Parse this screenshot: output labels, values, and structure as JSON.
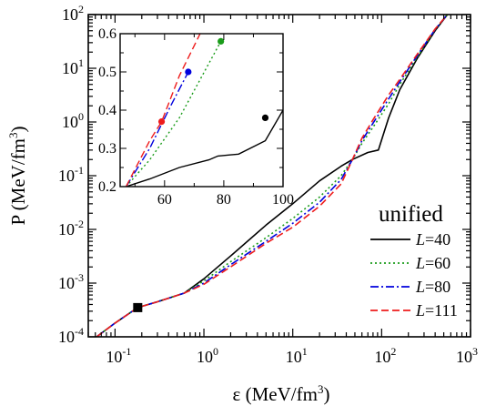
{
  "chart_data": [
    {
      "type": "line",
      "xscale": "log",
      "yscale": "log",
      "xlim": [
        0.05,
        1000
      ],
      "ylim": [
        0.0001,
        100
      ],
      "xlabel_base": "ε (MeV/fm",
      "xlabel_sup": "3",
      "xlabel_end": ")",
      "ylabel_base": "P (MeV/fm",
      "ylabel_sup": "3",
      "ylabel_end": ")",
      "x_ticks": [
        {
          "value": 0.1,
          "base": "10",
          "exp": "-1"
        },
        {
          "value": 1,
          "base": "10",
          "exp": "0"
        },
        {
          "value": 10,
          "base": "10",
          "exp": "1"
        },
        {
          "value": 100,
          "base": "10",
          "exp": "2"
        },
        {
          "value": 1000,
          "base": "10",
          "exp": "3"
        }
      ],
      "y_ticks": [
        {
          "value": 0.0001,
          "base": "10",
          "exp": "-4"
        },
        {
          "value": 0.001,
          "base": "10",
          "exp": "-3"
        },
        {
          "value": 0.01,
          "base": "10",
          "exp": "-2"
        },
        {
          "value": 0.1,
          "base": "10",
          "exp": "-1"
        },
        {
          "value": 1,
          "base": "10",
          "exp": "0"
        },
        {
          "value": 10,
          "base": "10",
          "exp": "1"
        },
        {
          "value": 100,
          "base": "10",
          "exp": "2"
        }
      ],
      "legend_title": "unified",
      "legend_position": "right",
      "series": [
        {
          "name_italic": "L",
          "name_rest": "=40",
          "color": "#000000",
          "dash": "solid",
          "points": [
            [
              0.062,
              0.0001
            ],
            [
              0.1,
              0.00018
            ],
            [
              0.18,
              0.00035
            ],
            [
              0.3,
              0.00045
            ],
            [
              0.6,
              0.00065
            ],
            [
              1,
              0.0012
            ],
            [
              2,
              0.0032
            ],
            [
              5,
              0.012
            ],
            [
              10,
              0.03
            ],
            [
              20,
              0.08
            ],
            [
              35,
              0.15
            ],
            [
              47,
              0.2
            ],
            [
              70,
              0.27
            ],
            [
              92,
              0.3
            ],
            [
              120,
              1.2
            ],
            [
              160,
              4
            ],
            [
              250,
              15
            ],
            [
              400,
              50
            ],
            [
              550,
              100
            ]
          ]
        },
        {
          "name_italic": "L",
          "name_rest": "=60",
          "color": "#1a9c1a",
          "dash": "dotted",
          "points": [
            [
              0.062,
              0.0001
            ],
            [
              0.1,
              0.00018
            ],
            [
              0.18,
              0.00035
            ],
            [
              0.3,
              0.00045
            ],
            [
              0.6,
              0.00065
            ],
            [
              1,
              0.0011
            ],
            [
              2,
              0.0025
            ],
            [
              5,
              0.007
            ],
            [
              10,
              0.016
            ],
            [
              20,
              0.04
            ],
            [
              35,
              0.1
            ],
            [
              47,
              0.2
            ],
            [
              60,
              0.4
            ],
            [
              80,
              0.8
            ],
            [
              120,
              2.2
            ],
            [
              160,
              5
            ],
            [
              250,
              16
            ],
            [
              400,
              52
            ],
            [
              550,
              100
            ]
          ]
        },
        {
          "name_italic": "L",
          "name_rest": "=80",
          "color": "#0000dd",
          "dash": "dashdot",
          "points": [
            [
              0.062,
              0.0001
            ],
            [
              0.1,
              0.00018
            ],
            [
              0.18,
              0.00035
            ],
            [
              0.3,
              0.00045
            ],
            [
              0.6,
              0.00065
            ],
            [
              1,
              0.001
            ],
            [
              2,
              0.0022
            ],
            [
              5,
              0.006
            ],
            [
              10,
              0.013
            ],
            [
              20,
              0.032
            ],
            [
              35,
              0.085
            ],
            [
              47,
              0.2
            ],
            [
              60,
              0.45
            ],
            [
              80,
              0.95
            ],
            [
              120,
              2.7
            ],
            [
              160,
              5.6
            ],
            [
              250,
              17
            ],
            [
              400,
              53
            ],
            [
              550,
              100
            ]
          ]
        },
        {
          "name_italic": "L",
          "name_rest": "=111",
          "color": "#ee1c1c",
          "dash": "dashed",
          "points": [
            [
              0.062,
              0.0001
            ],
            [
              0.1,
              0.00018
            ],
            [
              0.18,
              0.00035
            ],
            [
              0.3,
              0.00045
            ],
            [
              0.6,
              0.00065
            ],
            [
              1,
              0.00095
            ],
            [
              2,
              0.002
            ],
            [
              5,
              0.0055
            ],
            [
              10,
              0.011
            ],
            [
              20,
              0.027
            ],
            [
              35,
              0.07
            ],
            [
              47,
              0.2
            ],
            [
              60,
              0.5
            ],
            [
              80,
              1.1
            ],
            [
              120,
              3.2
            ],
            [
              160,
              6.2
            ],
            [
              250,
              18
            ],
            [
              400,
              54
            ],
            [
              550,
              100
            ]
          ]
        }
      ],
      "marker": {
        "shape": "square",
        "x": 0.18,
        "y": 0.00035,
        "color": "#000000"
      }
    },
    {
      "type": "line",
      "role": "inset",
      "xlim": [
        45,
        100
      ],
      "ylim": [
        0.2,
        0.6
      ],
      "x_ticks": [
        60,
        80,
        100
      ],
      "y_ticks": [
        0.2,
        0.3,
        0.4,
        0.5,
        0.6
      ],
      "series": [
        {
          "color": "#000000",
          "dash": "solid",
          "points": [
            [
              47,
              0.2
            ],
            [
              55,
              0.22
            ],
            [
              65,
              0.25
            ],
            [
              75,
              0.27
            ],
            [
              78,
              0.28
            ],
            [
              85,
              0.285
            ],
            [
              94,
              0.32
            ],
            [
              100,
              0.4
            ]
          ],
          "end_marker": [
            94,
            0.38
          ]
        },
        {
          "color": "#1a9c1a",
          "dash": "dotted",
          "points": [
            [
              47,
              0.2
            ],
            [
              55,
              0.27
            ],
            [
              65,
              0.38
            ],
            [
              79,
              0.58
            ]
          ],
          "end_marker": [
            79,
            0.58
          ]
        },
        {
          "color": "#0000dd",
          "dash": "dashdot",
          "points": [
            [
              47,
              0.2
            ],
            [
              55,
              0.3
            ],
            [
              62,
              0.41
            ],
            [
              68,
              0.5
            ]
          ],
          "end_marker": [
            68,
            0.5
          ]
        },
        {
          "color": "#ee1c1c",
          "dash": "dashed",
          "points": [
            [
              47,
              0.2
            ],
            [
              55,
              0.32
            ],
            [
              59,
              0.37
            ],
            [
              65,
              0.49
            ],
            [
              72,
              0.6
            ]
          ],
          "end_marker": [
            59,
            0.37
          ]
        }
      ]
    }
  ]
}
